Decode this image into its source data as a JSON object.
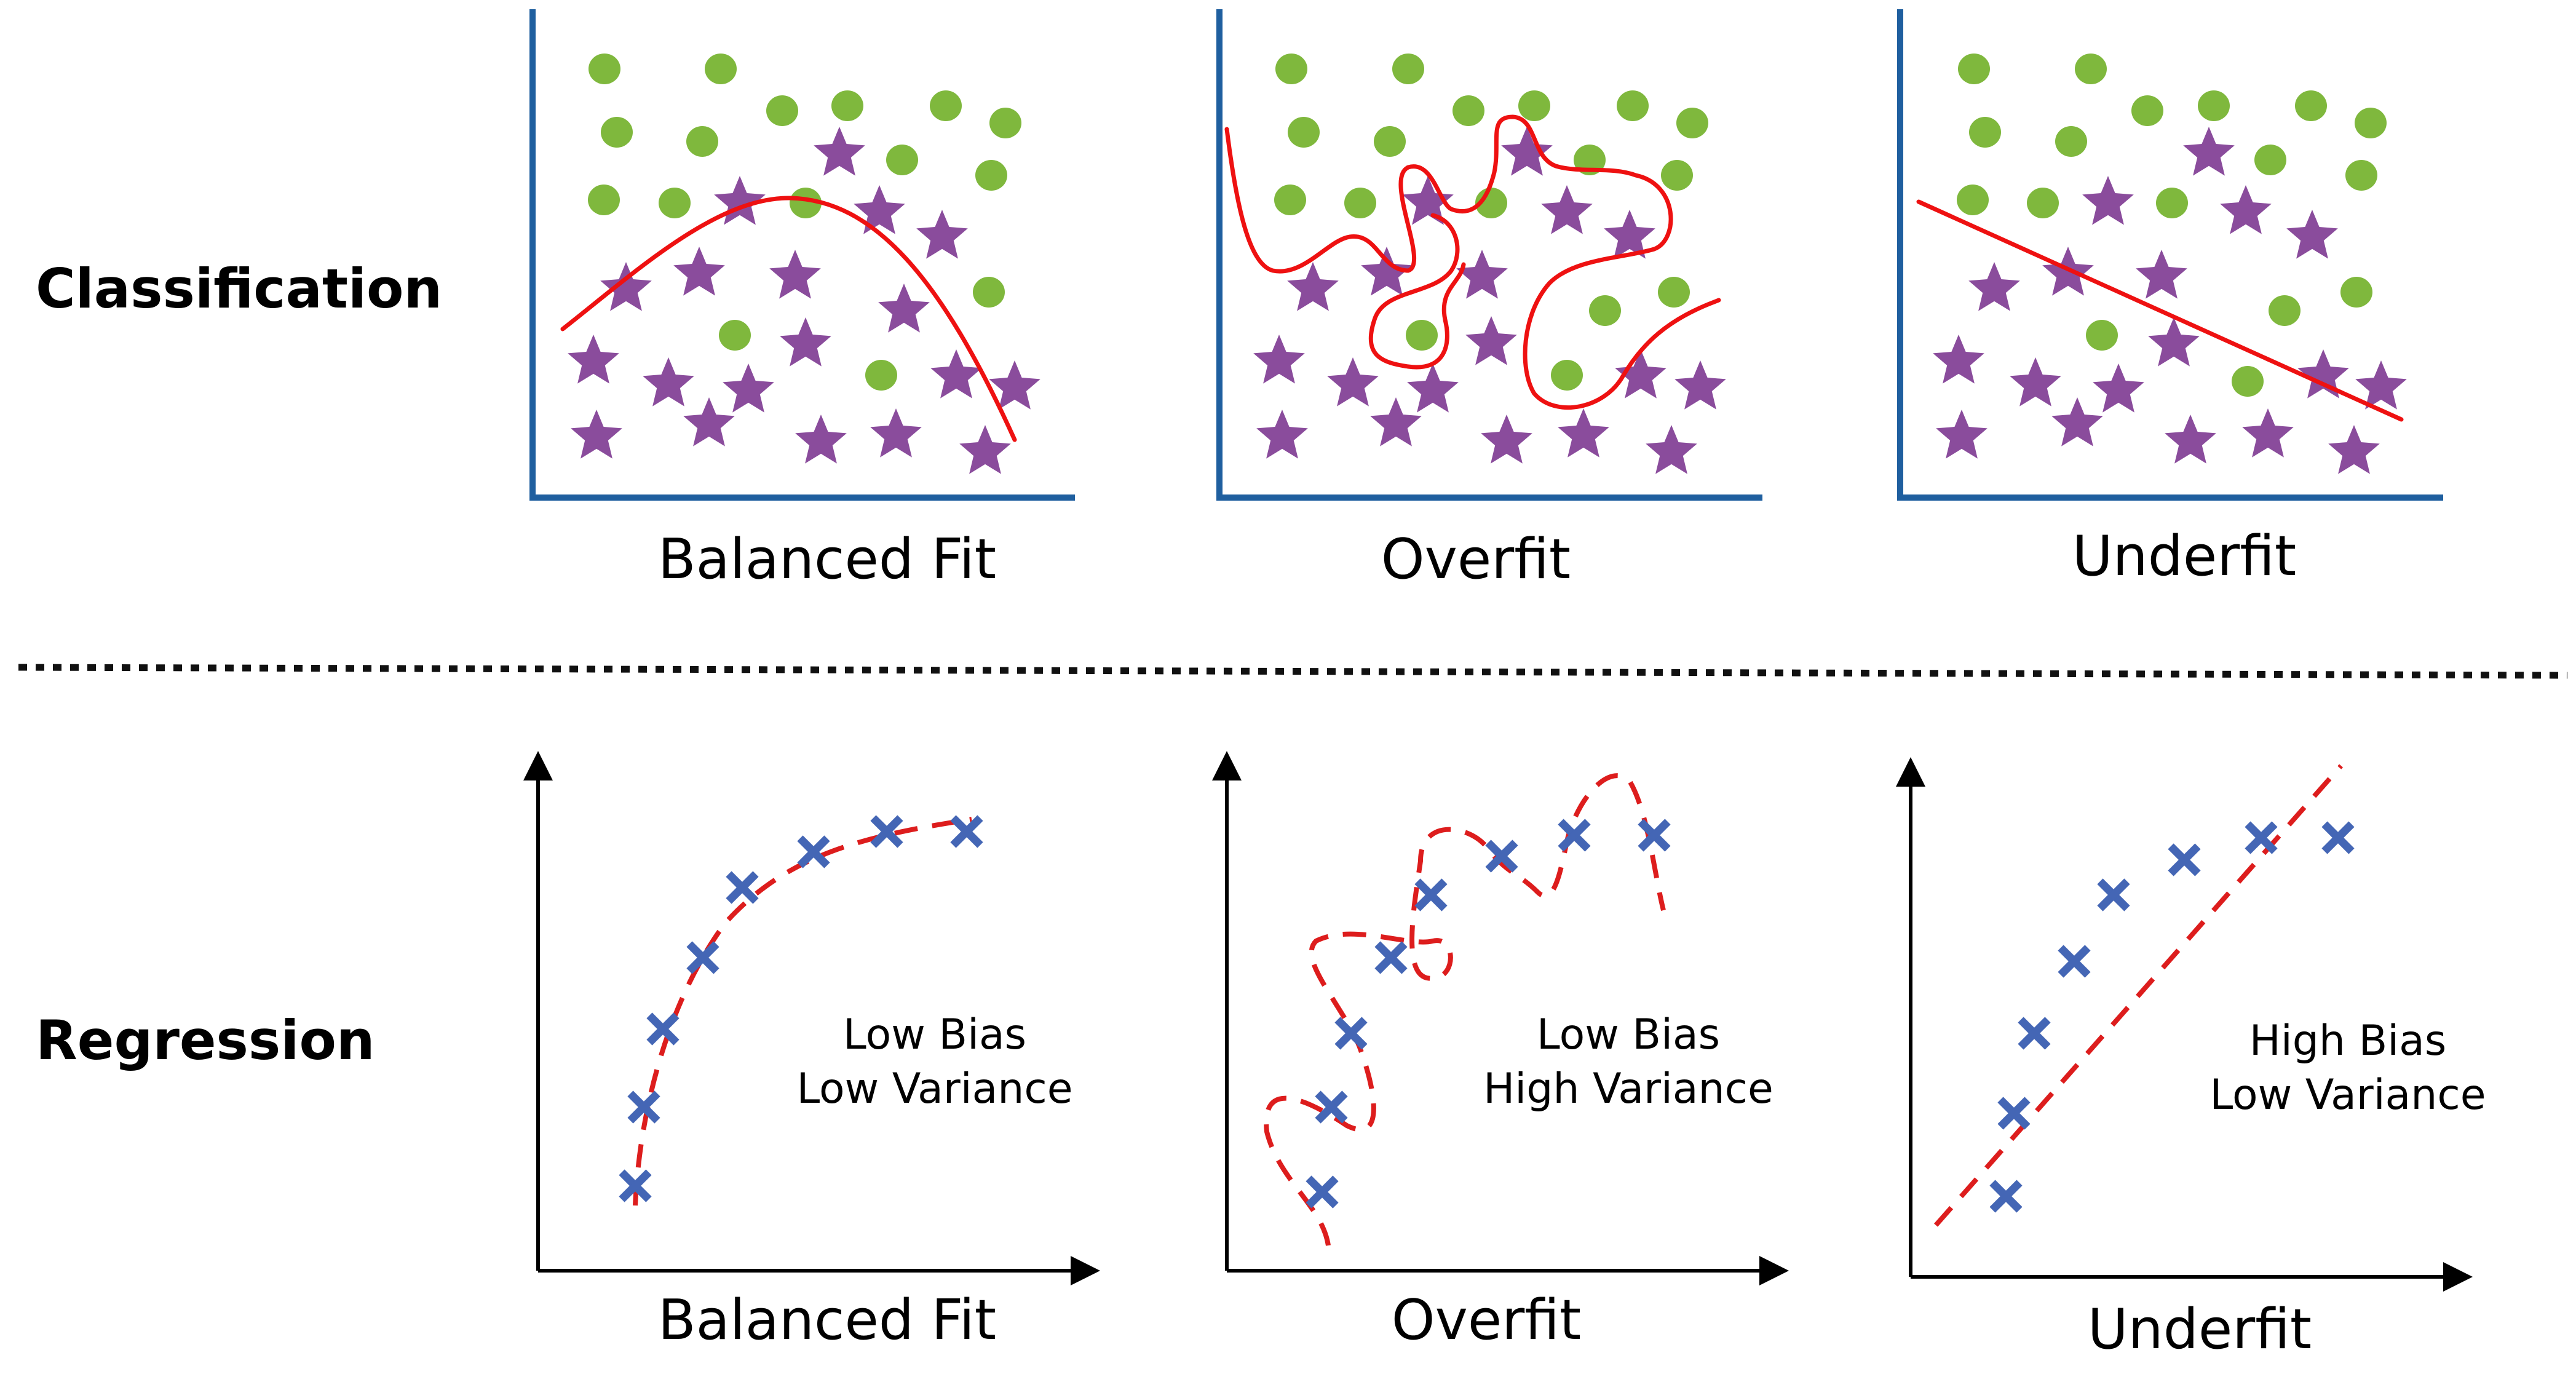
{
  "rows": {
    "classification": {
      "label": "Classification"
    },
    "regression": {
      "label": "Regression"
    }
  },
  "classification_panels": [
    {
      "caption": "Balanced Fit"
    },
    {
      "caption": "Overfit"
    },
    {
      "caption": "Underfit"
    }
  ],
  "regression_panels": [
    {
      "caption": "Balanced Fit",
      "note_line1": "Low Bias",
      "note_line2": "Low Variance"
    },
    {
      "caption": "Overfit",
      "note_line1": "Low Bias",
      "note_line2": "High Variance"
    },
    {
      "caption": "Underfit",
      "note_line1": "High Bias",
      "note_line2": "Low Variance"
    }
  ],
  "colors": {
    "class_a_circle": "#7fb83d",
    "class_b_star": "#8a4c9c",
    "boundary_line": "#ee1111",
    "regression_marker": "#4466b5",
    "classification_axis": "#1f5f9f",
    "regression_axis": "#000000"
  },
  "icons": {
    "class_a": "green-circle-icon",
    "class_b": "purple-star-icon",
    "data_point": "blue-x-icon"
  }
}
